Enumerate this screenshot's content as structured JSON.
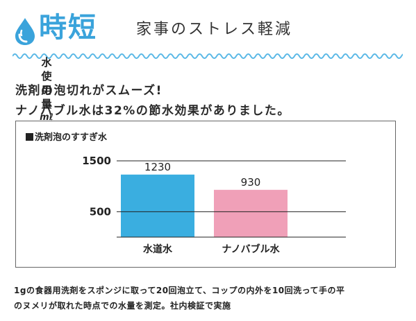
{
  "header": {
    "brand": "時短",
    "tagline": "家事のストレス軽減",
    "brand_color": "#3aa3db",
    "icon": "water-drop-icon"
  },
  "lead": {
    "line1": "洗剤の泡切れがスムーズ!",
    "line2": "ナノバブル水は32%の節水効果がありました。"
  },
  "panel": {
    "title": "洗剤泡のすすぎ水"
  },
  "ylabel_chars": [
    "水",
    "使",
    "用",
    "量",
    "mℓ"
  ],
  "chart_data": {
    "type": "bar",
    "title": "洗剤泡のすすぎ水",
    "ylabel": "水使用量 mℓ",
    "categories": [
      "水道水",
      "ナノバブル水"
    ],
    "values": [
      1230,
      930
    ],
    "value_labels": [
      "1230",
      "930"
    ],
    "yticks": [
      500,
      1500
    ],
    "ytick_labels": [
      "500",
      "1500"
    ],
    "ylim": [
      0,
      1500
    ],
    "bar_colors": [
      "#3aaee0",
      "#f0a0b8"
    ]
  },
  "footnote": {
    "line1": "1gの食器用洗剤をスポンジに取って20回泡立て、コップの内外を10回洗って手の平",
    "line2": "のヌメリが取れた時点での水量を測定。社内検証で実施"
  }
}
